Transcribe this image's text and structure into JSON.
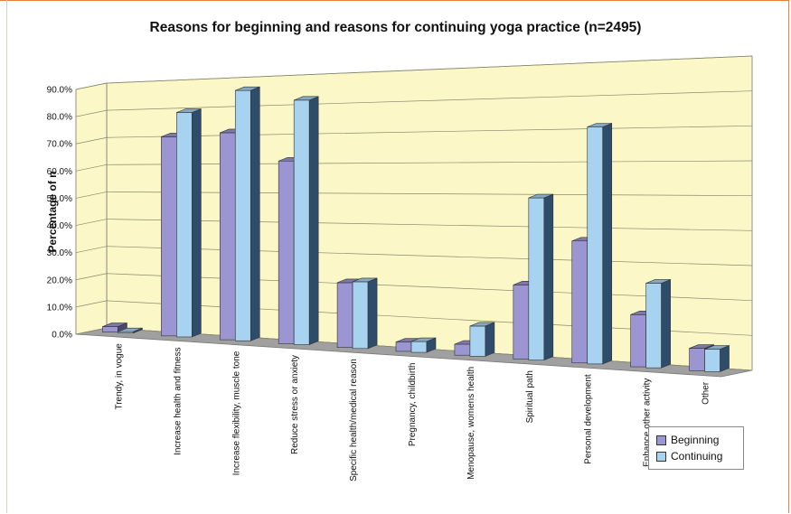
{
  "colors": {
    "beginning": "#9b96d2",
    "continuing": "#a7d2f0",
    "wall": "#fbf7c6",
    "floor": "#a0a0a0"
  },
  "chart_data": {
    "type": "bar",
    "title": "Reasons for beginning and reasons for continuing yoga practice (n=2495)",
    "xlabel": "",
    "ylabel": "Percentage of n",
    "ylim": [
      0,
      90
    ],
    "yticks": [
      "0.0%",
      "10.0%",
      "20.0%",
      "30.0%",
      "40.0%",
      "50.0%",
      "60.0%",
      "70.0%",
      "80.0%",
      "90.0%"
    ],
    "categories": [
      "Trendy, in vogue",
      "Increase health and fitness",
      "Increase flexibility, muscle tone",
      "Reduce stress or anxiety",
      "Specific health/medical reason",
      "Pregnancy, childbirth",
      "Menopause, womens health",
      "Spiritual path",
      "Personal development",
      "Enhance other activity",
      "Other"
    ],
    "series": [
      {
        "name": "Beginning",
        "values": [
          2.0,
          71.0,
          72.0,
          62.0,
          21.5,
          3.0,
          3.5,
          23.0,
          37.0,
          15.5,
          6.5
        ]
      },
      {
        "name": "Continuing",
        "values": [
          0.5,
          79.5,
          86.5,
          82.5,
          22.0,
          3.5,
          9.5,
          50.0,
          71.5,
          25.0,
          6.5
        ]
      }
    ],
    "grid": true,
    "legend_position": "bottom-right"
  }
}
